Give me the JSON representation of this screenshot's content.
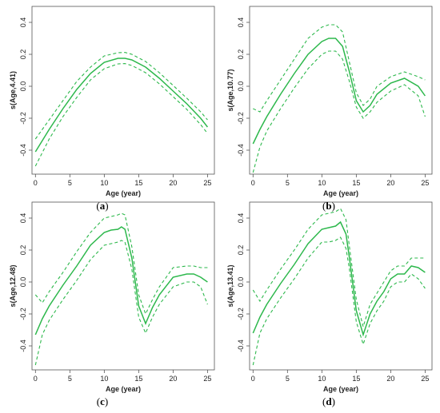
{
  "line_color": "#2db84c",
  "chart_data": [
    {
      "type": "line",
      "panel": "a",
      "xlabel": "Age (year)",
      "ylabel": "s(Age,4.41)",
      "xlim": [
        -0.5,
        26
      ],
      "ylim": [
        -0.55,
        0.5
      ],
      "xticks": [
        0,
        5,
        10,
        15,
        20,
        25
      ],
      "yticks": [
        -0.4,
        -0.2,
        0.0,
        0.2,
        0.4
      ],
      "x": [
        0,
        2,
        4,
        6,
        8,
        10,
        12,
        13,
        14,
        16,
        18,
        20,
        22,
        24,
        25
      ],
      "fit": [
        -0.41,
        -0.27,
        -0.14,
        -0.02,
        0.08,
        0.15,
        0.175,
        0.175,
        0.165,
        0.12,
        0.05,
        -0.03,
        -0.11,
        -0.2,
        -0.255
      ],
      "upper": [
        -0.33,
        -0.21,
        -0.09,
        0.03,
        0.12,
        0.19,
        0.21,
        0.212,
        0.2,
        0.155,
        0.085,
        0.005,
        -0.075,
        -0.16,
        -0.21
      ],
      "lower": [
        -0.5,
        -0.33,
        -0.19,
        -0.07,
        0.04,
        0.11,
        0.14,
        0.142,
        0.13,
        0.085,
        0.015,
        -0.065,
        -0.145,
        -0.24,
        -0.295
      ]
    },
    {
      "type": "line",
      "panel": "b",
      "xlabel": "Age (year)",
      "ylabel": "s(Age,10.77)",
      "xlim": [
        -0.5,
        26
      ],
      "ylim": [
        -0.55,
        0.5
      ],
      "xticks": [
        0,
        5,
        10,
        15,
        20,
        25
      ],
      "yticks": [
        -0.4,
        -0.2,
        0.0,
        0.2,
        0.4
      ],
      "x": [
        0,
        1,
        2,
        4,
        6,
        8,
        10,
        11,
        12,
        13,
        14,
        15,
        16,
        17,
        18,
        20,
        22,
        24,
        25
      ],
      "fit": [
        -0.36,
        -0.27,
        -0.19,
        -0.05,
        0.08,
        0.2,
        0.28,
        0.3,
        0.3,
        0.25,
        0.09,
        -0.09,
        -0.16,
        -0.12,
        -0.05,
        0.02,
        0.05,
        0.0,
        -0.06
      ],
      "upper": [
        -0.14,
        -0.16,
        -0.09,
        0.04,
        0.17,
        0.3,
        0.37,
        0.385,
        0.385,
        0.34,
        0.15,
        -0.04,
        -0.12,
        -0.08,
        -0.0,
        0.06,
        0.09,
        0.06,
        0.04
      ],
      "lower": [
        -0.54,
        -0.38,
        -0.28,
        -0.14,
        -0.01,
        0.11,
        0.2,
        0.22,
        0.22,
        0.17,
        0.03,
        -0.13,
        -0.2,
        -0.16,
        -0.1,
        -0.03,
        0.01,
        -0.06,
        -0.19
      ]
    },
    {
      "type": "line",
      "panel": "c",
      "xlabel": "Age (year)",
      "ylabel": "s(Age,12.48)",
      "xlim": [
        -0.5,
        26
      ],
      "ylim": [
        -0.55,
        0.5
      ],
      "xticks": [
        0,
        5,
        10,
        15,
        20,
        25
      ],
      "yticks": [
        -0.4,
        -0.2,
        0.0,
        0.2,
        0.4
      ],
      "x": [
        0,
        1,
        2,
        4,
        6,
        8,
        10,
        11,
        12,
        12.5,
        13,
        14,
        15,
        16,
        17,
        18,
        20,
        22,
        23,
        24,
        25
      ],
      "fit": [
        -0.33,
        -0.23,
        -0.15,
        -0.02,
        0.1,
        0.23,
        0.31,
        0.325,
        0.33,
        0.345,
        0.33,
        0.15,
        -0.15,
        -0.26,
        -0.16,
        -0.08,
        0.03,
        0.05,
        0.05,
        0.03,
        0.0
      ],
      "upper": [
        -0.08,
        -0.13,
        -0.06,
        0.06,
        0.19,
        0.31,
        0.4,
        0.41,
        0.42,
        0.43,
        0.42,
        0.22,
        -0.08,
        -0.2,
        -0.11,
        -0.03,
        0.09,
        0.1,
        0.1,
        0.09,
        0.09
      ],
      "lower": [
        -0.52,
        -0.33,
        -0.24,
        -0.11,
        0.01,
        0.14,
        0.23,
        0.24,
        0.25,
        0.26,
        0.25,
        0.08,
        -0.22,
        -0.32,
        -0.22,
        -0.14,
        -0.03,
        0.0,
        0.0,
        -0.03,
        -0.14
      ]
    },
    {
      "type": "line",
      "panel": "d",
      "xlabel": "Age (year)",
      "ylabel": "s(Age,13.41)",
      "xlim": [
        -0.5,
        26
      ],
      "ylim": [
        -0.55,
        0.5
      ],
      "xticks": [
        0,
        5,
        10,
        15,
        20,
        25
      ],
      "yticks": [
        -0.4,
        -0.2,
        0.0,
        0.2,
        0.4
      ],
      "x": [
        0,
        1,
        2,
        4,
        6,
        8,
        10,
        11,
        12,
        12.7,
        13.5,
        14,
        15,
        16,
        17,
        18,
        19,
        20,
        21,
        22,
        23,
        24,
        25
      ],
      "fit": [
        -0.32,
        -0.22,
        -0.14,
        -0.01,
        0.11,
        0.24,
        0.33,
        0.34,
        0.35,
        0.375,
        0.3,
        0.15,
        -0.18,
        -0.33,
        -0.2,
        -0.12,
        -0.06,
        0.02,
        0.05,
        0.05,
        0.1,
        0.09,
        0.06
      ],
      "upper": [
        -0.05,
        -0.12,
        -0.05,
        0.08,
        0.2,
        0.33,
        0.42,
        0.43,
        0.44,
        0.46,
        0.39,
        0.22,
        -0.11,
        -0.28,
        -0.14,
        -0.07,
        -0.0,
        0.07,
        0.1,
        0.1,
        0.15,
        0.15,
        0.15
      ],
      "lower": [
        -0.52,
        -0.32,
        -0.23,
        -0.1,
        0.02,
        0.15,
        0.25,
        0.25,
        0.26,
        0.28,
        0.21,
        0.08,
        -0.25,
        -0.39,
        -0.26,
        -0.18,
        -0.12,
        -0.03,
        0.0,
        0.0,
        0.05,
        0.02,
        -0.04
      ]
    }
  ],
  "panel_labels": [
    "a",
    "b",
    "c",
    "d"
  ]
}
